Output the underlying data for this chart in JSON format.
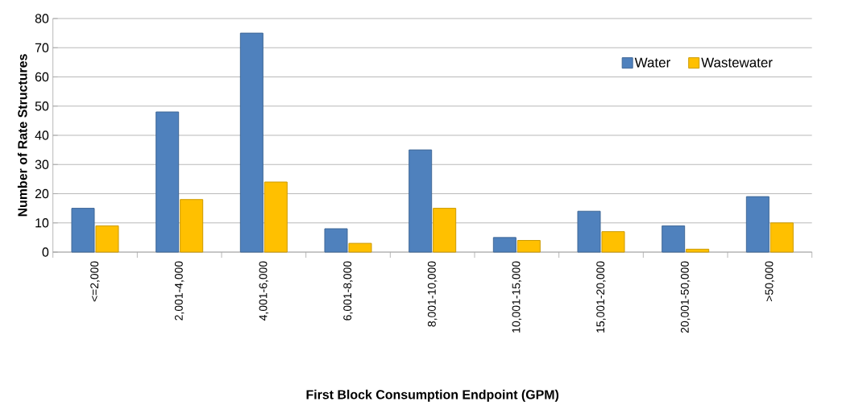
{
  "chart_data": {
    "type": "bar",
    "xlabel": "First Block Consumption Endpoint (GPM)",
    "ylabel": "Number of Rate Structures",
    "categories": [
      "<=2,000",
      "2,001-4,000",
      "4,001-6,000",
      "6,001-8,000",
      "8,001-10,000",
      "10,001-15,000",
      "15,001-20,000",
      "20,001-50,000",
      ">50,000"
    ],
    "series": [
      {
        "name": "Water",
        "color": "#4f81bd",
        "values": [
          15,
          48,
          75,
          8,
          35,
          5,
          14,
          9,
          19
        ]
      },
      {
        "name": "Wastewater",
        "color": "#ffc000",
        "values": [
          9,
          18,
          24,
          3,
          15,
          4,
          7,
          1,
          10
        ]
      }
    ],
    "ylim": [
      0,
      80
    ],
    "yticks": [
      0,
      10,
      20,
      30,
      40,
      50,
      60,
      70,
      80
    ],
    "grid": "y",
    "legend": "top right"
  }
}
